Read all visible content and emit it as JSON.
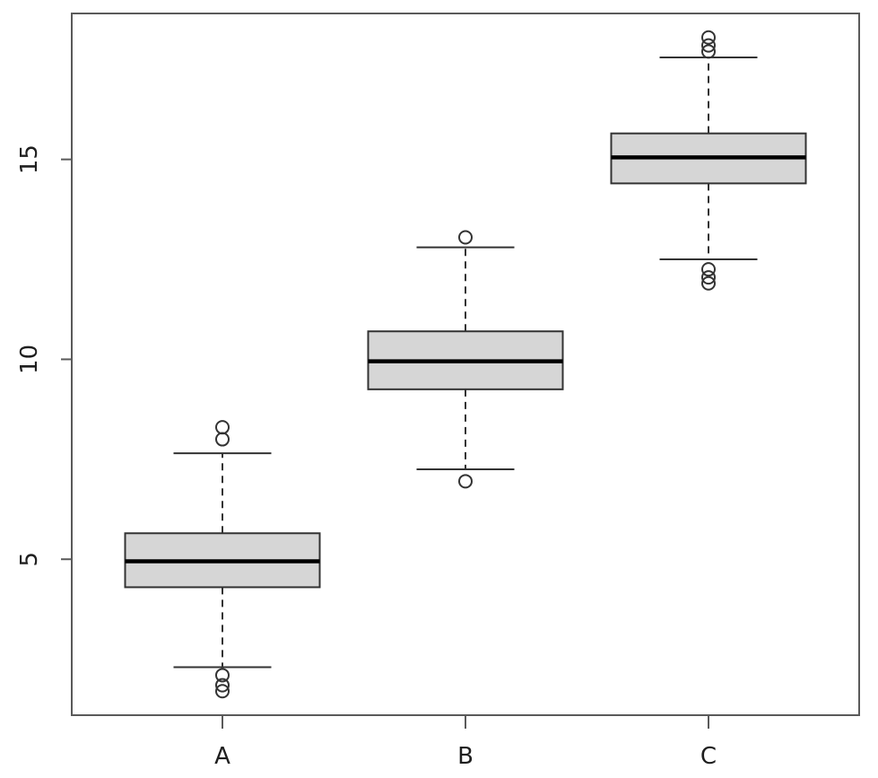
{
  "chart_data": {
    "type": "boxplot",
    "categories": [
      "A",
      "B",
      "C"
    ],
    "y_ticks": [
      5,
      10,
      15
    ],
    "ylim": [
      1.1,
      18.65
    ],
    "grid": false,
    "legend": false,
    "series": [
      {
        "name": "A",
        "q1": 4.3,
        "median": 4.95,
        "q3": 5.65,
        "whisker_low": 2.3,
        "whisker_high": 7.65,
        "outliers_low": [
          2.1,
          1.85,
          1.7
        ],
        "outliers_high": [
          8.0,
          8.3
        ]
      },
      {
        "name": "B",
        "q1": 9.25,
        "median": 9.95,
        "q3": 10.7,
        "whisker_low": 7.25,
        "whisker_high": 12.8,
        "outliers_low": [
          6.95
        ],
        "outliers_high": [
          13.05
        ]
      },
      {
        "name": "C",
        "q1": 14.4,
        "median": 15.05,
        "q3": 15.65,
        "whisker_low": 12.5,
        "whisker_high": 17.55,
        "outliers_low": [
          12.25,
          12.05,
          11.9
        ],
        "outliers_high": [
          18.05,
          17.85,
          17.7
        ]
      }
    ],
    "colors": {
      "background": "#ffffff",
      "box_fill": "#d6d6d6",
      "box_border": "#333333",
      "median": "#000000",
      "whisker": "#333333",
      "axis": "#5a5a5a",
      "label": "#1f1f1f"
    }
  }
}
